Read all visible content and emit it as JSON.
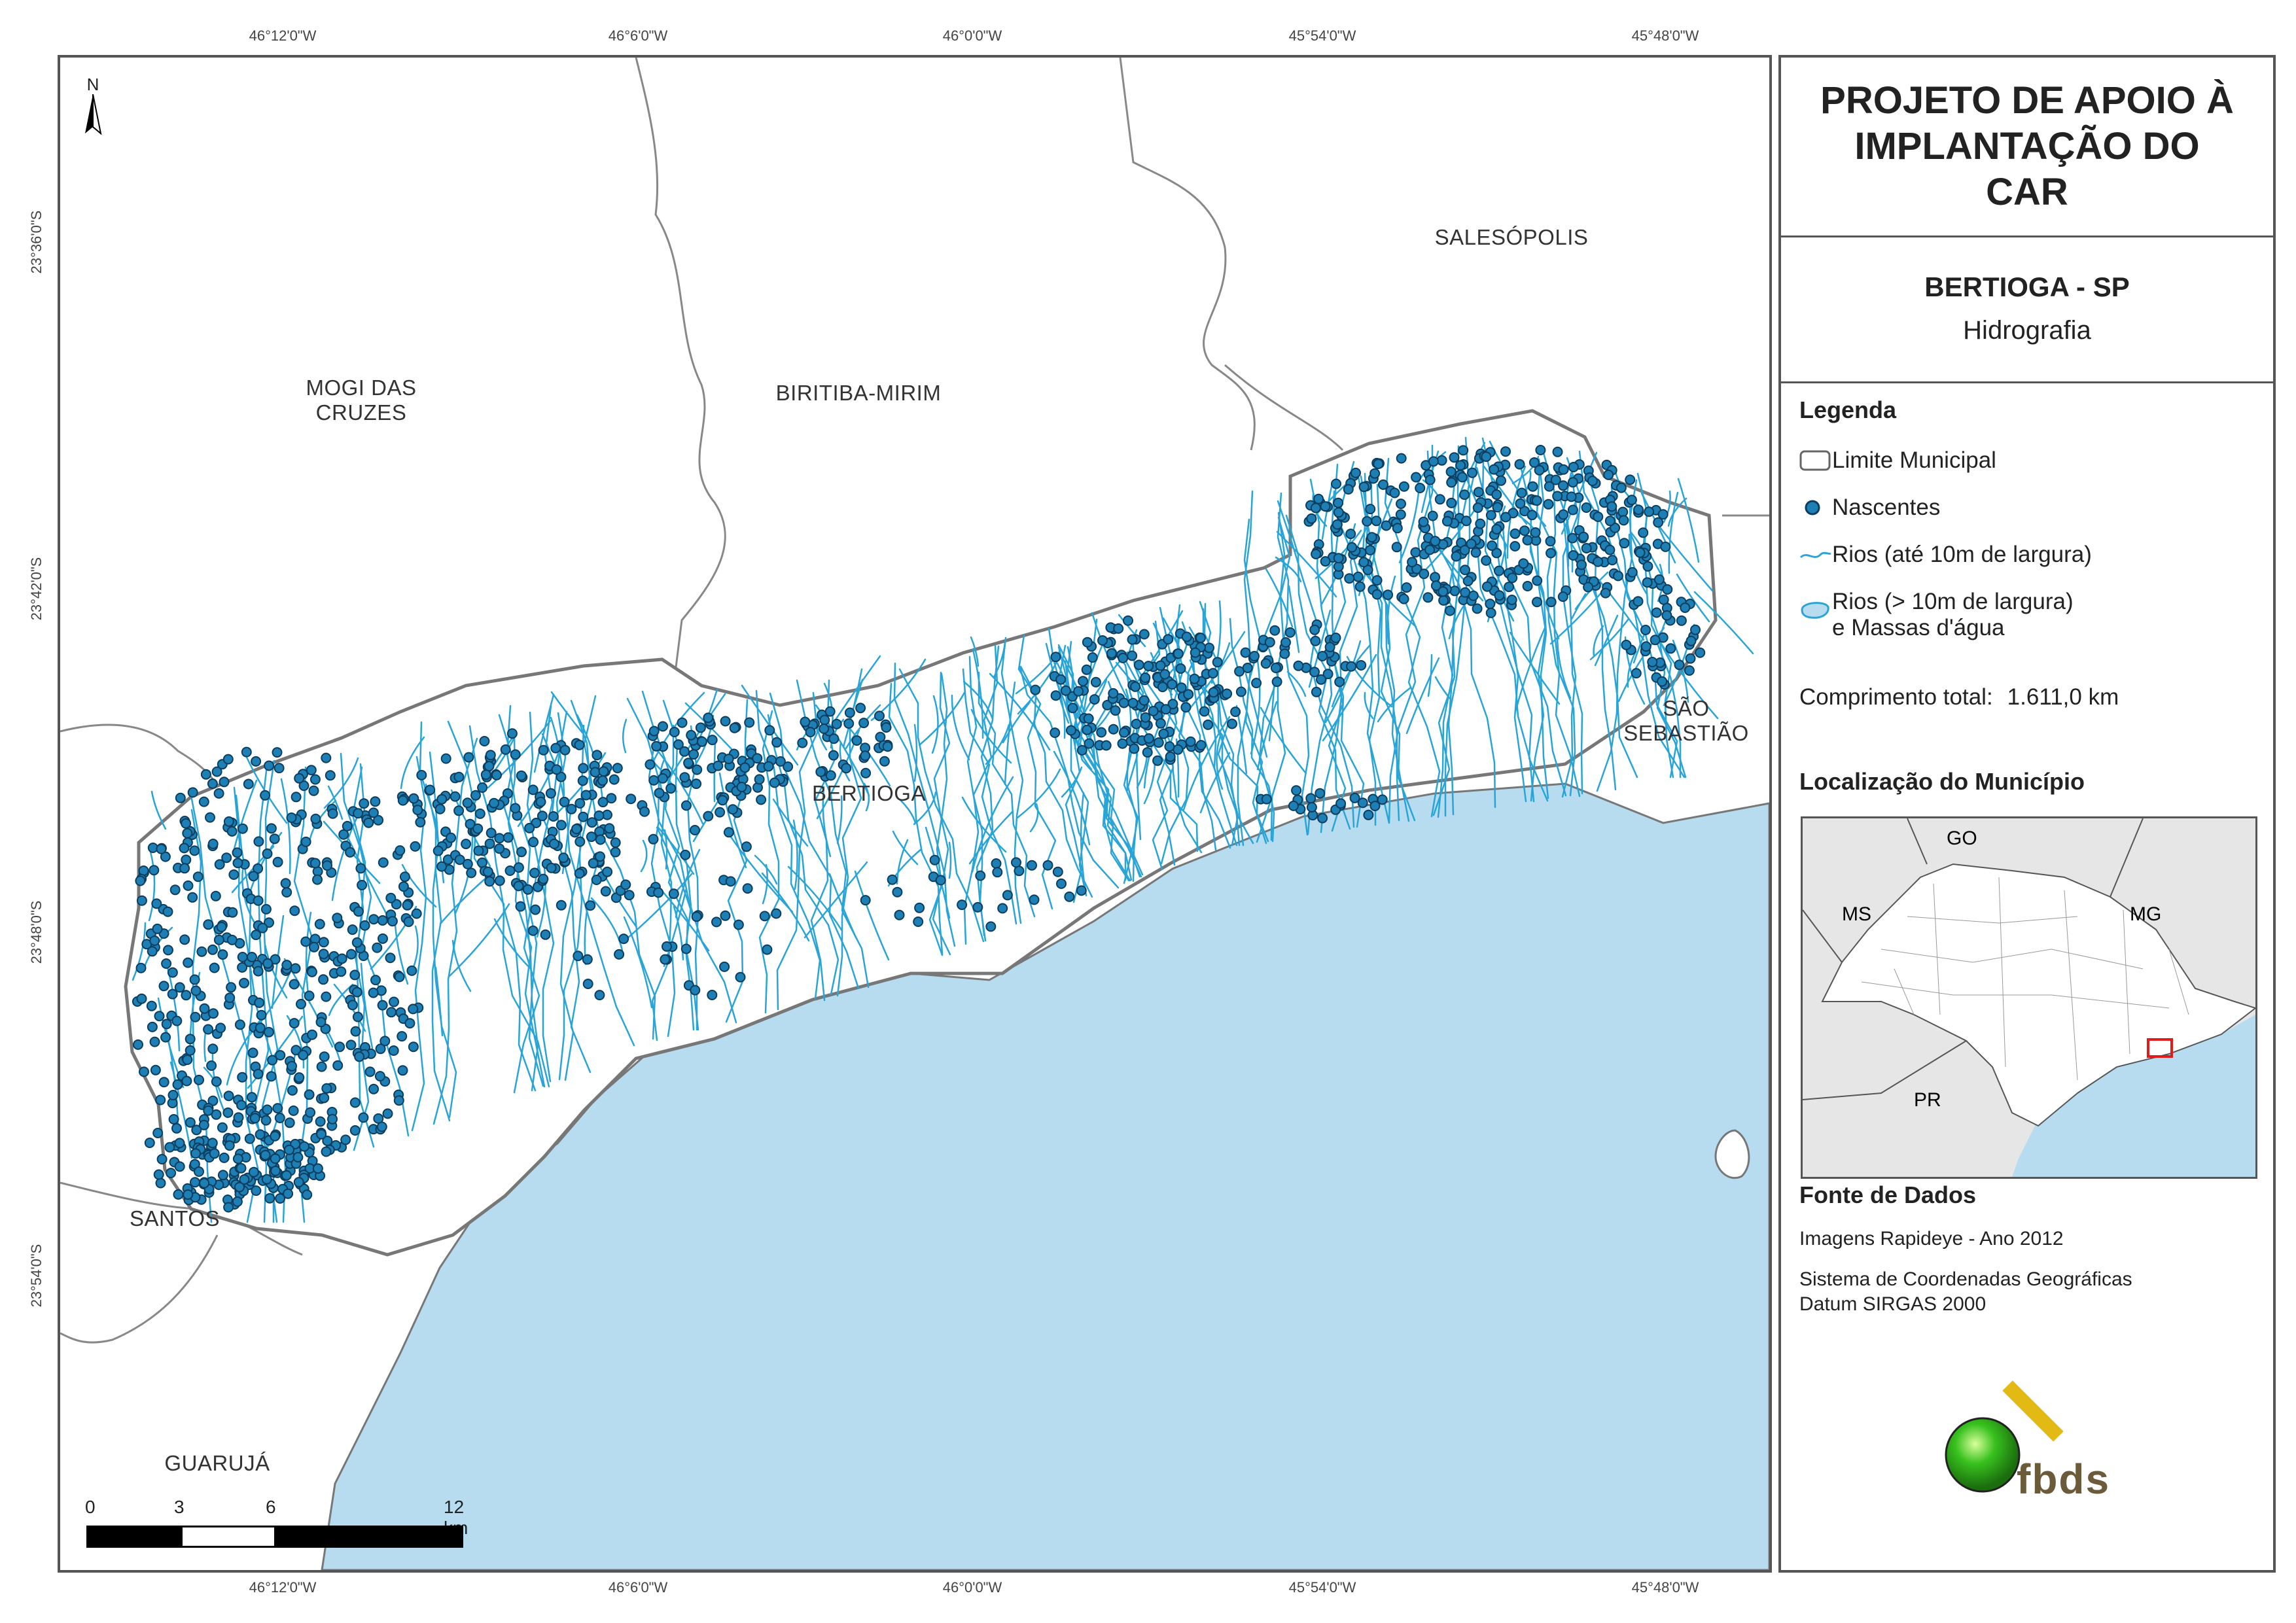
{
  "grid_labels": {
    "longitudes": [
      "46°12'0\"W",
      "46°6'0\"W",
      "46°0'0\"W",
      "45°54'0\"W",
      "45°48'0\"W"
    ],
    "latitudes": [
      "23°36'0\"S",
      "23°42'0\"S",
      "23°48'0\"S",
      "23°54'0\"S"
    ]
  },
  "north_arrow": {
    "label": "N",
    "icon": "north-arrow-icon"
  },
  "places": {
    "mogi": "MOGI DAS\nCRUZES",
    "biritiba": "BIRITIBA-MIRIM",
    "salesopolis": "SALESÓPOLIS",
    "sao_sebastiao": "SÃO\nSEBASTIÃO",
    "bertioga": "BERTIOGA",
    "santos": "SANTOS",
    "guaruja": "GUARUJÁ"
  },
  "scale_bar": {
    "labels": [
      "0",
      "3",
      "6",
      "12 km"
    ],
    "ticks_km": [
      0,
      3,
      6,
      12
    ]
  },
  "panel": {
    "title": "PROJETO DE APOIO À IMPLANTAÇÃO DO CAR",
    "municipality": "BERTIOGA - SP",
    "theme": "Hidrografia",
    "legend": {
      "heading": "Legenda",
      "items": [
        {
          "label": "Limite Municipal",
          "icon": "boundary-swatch-icon"
        },
        {
          "label": "Nascentes",
          "icon": "spring-dot-icon"
        },
        {
          "label": "Rios (até 10m de largura)",
          "icon": "river-line-icon"
        },
        {
          "label": "Rios (> 10m de largura)\ne Massas d'água",
          "icon": "water-body-icon"
        }
      ]
    },
    "total_length": {
      "label": "Comprimento total:",
      "value": "1.611,0 km"
    },
    "location": {
      "heading": "Localização do Município",
      "states": [
        "GO",
        "MS",
        "MG",
        "PR"
      ]
    },
    "source": {
      "heading": "Fonte de Dados",
      "lines": [
        "Imagens Rapideye - Ano 2012",
        "Sistema de Coordenadas Geográficas",
        "Datum SIRGAS 2000"
      ]
    },
    "logo_text": "fbds"
  },
  "colors": {
    "sea": "#b7dcef",
    "river": "#29a4d6",
    "spring_fill": "#1d7fb3",
    "spring_stroke": "#0c3d5e",
    "boundary": "#888888",
    "inset_highlight": "#e01b1b",
    "logo_green": "#38c11e",
    "logo_gold": "#e3b914",
    "logo_text": "#6b5b3a"
  }
}
